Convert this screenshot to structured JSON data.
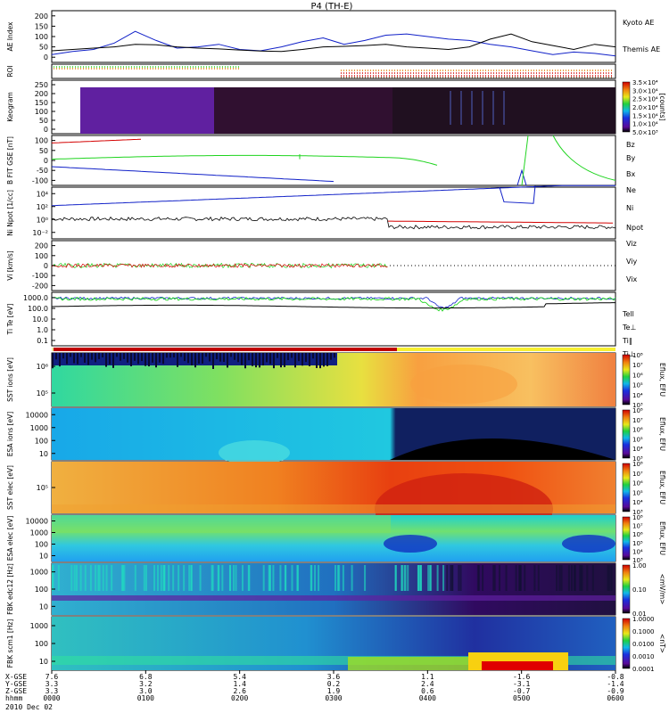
{
  "title": "P4 (TH-E)",
  "date": "2010 Dec 02",
  "colors": {
    "red": "#d40000",
    "green": "#1fd41f",
    "blue": "#1020c8",
    "black": "#000000",
    "orange": "#e08000"
  },
  "chart_data": [
    {
      "type": "line",
      "id": "ae",
      "ylabel": "AE Index",
      "ylim": [
        0,
        200
      ],
      "yticks": [
        "0",
        "50",
        "100",
        "150",
        "200"
      ],
      "legend": [
        "Kyoto AE",
        "Themis AE"
      ],
      "series": [
        {
          "name": "Kyoto AE",
          "color": "#1020c8",
          "values": [
            30,
            42,
            50,
            75,
            120,
            85,
            55,
            60,
            70,
            50,
            45,
            60,
            80,
            95,
            70,
            85,
            105,
            110,
            100,
            90,
            85,
            70,
            60,
            45,
            30,
            40,
            35,
            25
          ]
        },
        {
          "name": "Themis AE",
          "color": "#000000",
          "values": [
            45,
            50,
            55,
            60,
            70,
            68,
            60,
            55,
            52,
            48,
            44,
            42,
            50,
            60,
            62,
            65,
            70,
            60,
            55,
            50,
            60,
            90,
            110,
            80,
            65,
            50,
            70,
            60
          ]
        }
      ]
    },
    {
      "type": "line",
      "id": "roi",
      "ylabel": "ROI"
    },
    {
      "type": "heatmap",
      "id": "keogram",
      "ylabel": "Keogram",
      "ylim": [
        0,
        250
      ],
      "yticks": [
        "0",
        "50",
        "100",
        "150",
        "200",
        "250"
      ],
      "colorbar_label": "[counts]",
      "colorbar_ticks": [
        "5.0×10³",
        "1.0×10⁴",
        "1.5×10⁴",
        "2.0×10⁴",
        "2.5×10⁴",
        "3.0×10⁴",
        "3.5×10⁴"
      ]
    },
    {
      "type": "line",
      "id": "bfield",
      "ylabel": "B FIT GSE [nT]",
      "ylim": [
        -100,
        100
      ],
      "yticks": [
        "-100",
        "-50",
        "0",
        "50",
        "100"
      ],
      "legend": [
        "Bz",
        "By",
        "Bx"
      ]
    },
    {
      "type": "line",
      "id": "density",
      "ylabel": "Ni Npot [1/cc]",
      "yticks": [
        "10⁻²",
        "10⁰",
        "10²",
        "10⁴"
      ],
      "legend": [
        "Ne",
        "Ni",
        "Npot"
      ]
    },
    {
      "type": "line",
      "id": "vel",
      "ylabel": "Vi [km/s]",
      "ylim": [
        -200,
        200
      ],
      "yticks": [
        "-200",
        "-100",
        "0",
        "100",
        "200"
      ],
      "legend": [
        "Viz",
        "Viy",
        "Vix"
      ]
    },
    {
      "type": "line",
      "id": "temp",
      "ylabel": "Ti Te [eV]",
      "yticks": [
        "0.1",
        "1.0",
        "10.0",
        "100.0",
        "1000.0"
      ],
      "legend": [
        "Tell",
        "Te⊥",
        "Ti‖",
        "Ti⊥"
      ]
    },
    {
      "type": "heatmap",
      "id": "sst_i",
      "ylabel": "SST ions [eV]",
      "yticks": [
        "10⁵",
        "10⁶"
      ],
      "colorbar_label": "Eflux, EFU",
      "colorbar_ticks": [
        "10³",
        "10⁴",
        "10⁵",
        "10⁶",
        "10⁷",
        "10⁸"
      ]
    },
    {
      "type": "heatmap",
      "id": "esa_i",
      "ylabel": "ESA ions [eV]",
      "yticks": [
        "10",
        "100",
        "1000",
        "10000"
      ],
      "colorbar_label": "Eflux, EFU",
      "colorbar_ticks": [
        "10³",
        "10⁴",
        "10⁵",
        "10⁶",
        "10⁷",
        "10⁸"
      ]
    },
    {
      "type": "heatmap",
      "id": "sst_e",
      "ylabel": "SST elec [eV]",
      "yticks": [
        "10⁵"
      ],
      "colorbar_label": "Eflux, EFU",
      "colorbar_ticks": [
        "10³",
        "10⁴",
        "10⁵",
        "10⁶",
        "10⁷",
        "10⁸"
      ]
    },
    {
      "type": "heatmap",
      "id": "esa_e",
      "ylabel": "ESA elec [eV]",
      "yticks": [
        "10",
        "100",
        "1000",
        "10000"
      ],
      "colorbar_label": "Eflux, EFU",
      "colorbar_ticks": [
        "10³",
        "10⁴",
        "10⁵",
        "10⁶",
        "10⁷",
        "10⁸"
      ]
    },
    {
      "type": "heatmap",
      "id": "fbk_edc",
      "ylabel": "FBK edc12 [Hz]",
      "yticks": [
        "10",
        "100",
        "1000"
      ],
      "colorbar_label": "<mV/m>",
      "colorbar_ticks": [
        "0.01",
        "0.10",
        "1.00"
      ]
    },
    {
      "type": "heatmap",
      "id": "fbk_scm",
      "ylabel": "FBK scm1 [Hz]",
      "yticks": [
        "10",
        "100",
        "1000"
      ],
      "colorbar_label": "<nT>",
      "colorbar_ticks": [
        "0.0001",
        "0.0010",
        "0.0100",
        "0.1000",
        "1.0000"
      ]
    }
  ],
  "xaxis": {
    "row_labels": [
      "X-GSE",
      "Y-GSE",
      "Z-GSE",
      "hhmm"
    ],
    "columns": [
      [
        "7.6",
        "3.3",
        "3.3",
        "0000"
      ],
      [
        "6.8",
        "3.2",
        "3.0",
        "0100"
      ],
      [
        "5.4",
        "1.4",
        "2.6",
        "0200"
      ],
      [
        "3.6",
        "0.2",
        "1.9",
        "0300"
      ],
      [
        "1.1",
        "2.4",
        "0.6",
        "0400"
      ],
      [
        "-1.6",
        "-3.1",
        "-0.7",
        "0500"
      ],
      [
        "-0.8",
        "-1.4",
        "-0.9",
        "0600"
      ]
    ]
  }
}
